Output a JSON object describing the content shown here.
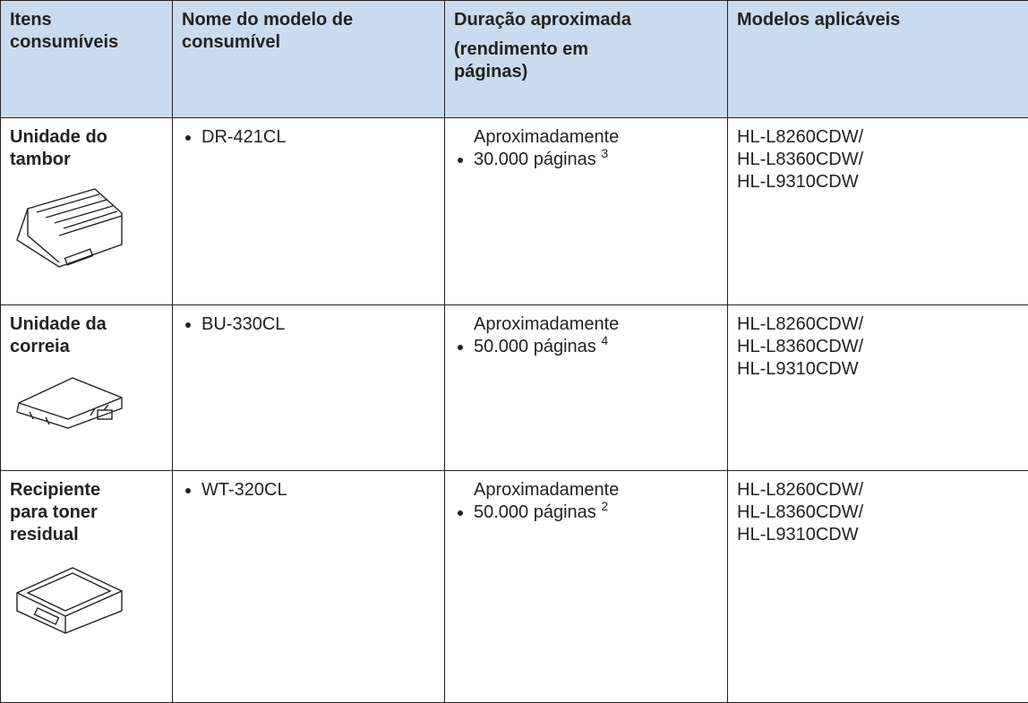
{
  "table": {
    "headers": [
      {
        "lines": [
          "Itens consumíveis"
        ]
      },
      {
        "lines": [
          "Nome do modelo de consumível"
        ]
      },
      {
        "lines": [
          "Duração aproximada",
          "(rendimento em páginas)"
        ]
      },
      {
        "lines": [
          "Modelos aplicáveis"
        ]
      }
    ],
    "rows": [
      {
        "item": "Unidade do tambor",
        "model": "DR-421CL",
        "yield": "Aproximadamente 30.000 páginas",
        "note": "3",
        "models": [
          "HL-L8260CDW/",
          "HL-L8360CDW/",
          "HL-L9310CDW"
        ]
      },
      {
        "item": "Unidade da correia",
        "model": "BU-330CL",
        "yield": "Aproximadamente 50.000 páginas",
        "note": "4",
        "models": [
          "HL-L8260CDW/",
          "HL-L8360CDW/",
          "HL-L9310CDW"
        ]
      },
      {
        "item": "Recipiente para toner residual",
        "model": "WT-320CL",
        "yield": "Aproximadamente 50.000 páginas",
        "note": "2",
        "models": [
          "HL-L8260CDW/",
          "HL-L8360CDW/",
          "HL-L9310CDW"
        ]
      }
    ]
  }
}
